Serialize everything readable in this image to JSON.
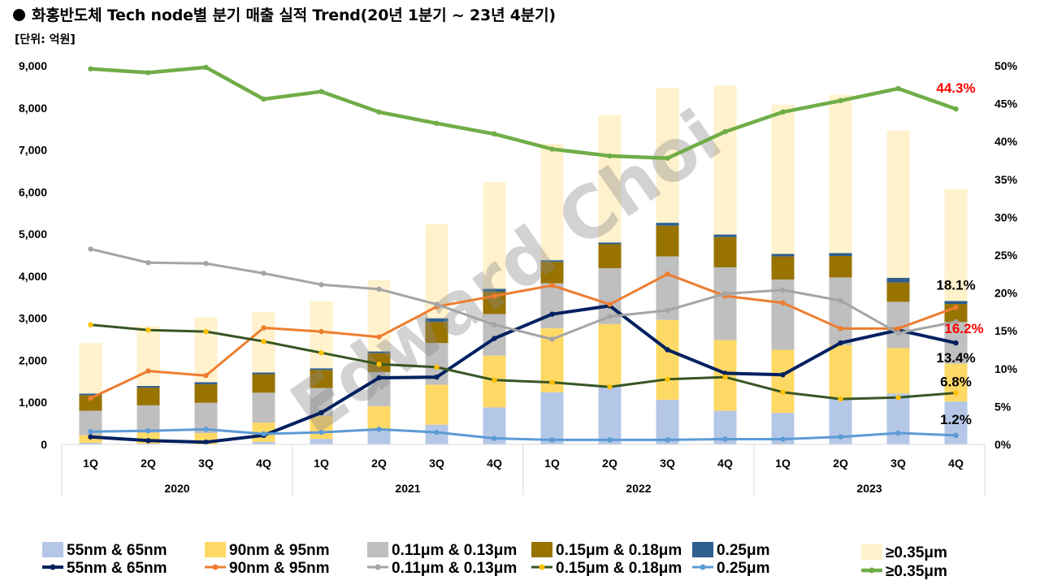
{
  "header": {
    "title": "화홍반도체 Tech node별 분기 매출 실적 Trend(20년 1분기 ~ 23년 4분기)",
    "unit": "[단위: 억원]"
  },
  "watermark": "Edward Choi",
  "colors": {
    "bar_55": "#b4c7e7",
    "bar_90": "#ffd966",
    "bar_011": "#bfbfbf",
    "bar_015": "#997300",
    "bar_025": "#2e5f8f",
    "bar_035": "#fff2cc",
    "line_55": "#002060",
    "line_90": "#ed7d31",
    "line_011": "#a5a5a5",
    "line_015": "#375623",
    "line_025": "#5b9bd5",
    "line_035": "#70ad47",
    "marker_015": "#ffc000",
    "label_red": "#ff0000"
  },
  "chart_data": {
    "type": "bar",
    "subtype": "stacked bar + line combo (dual axis)",
    "categories": [
      "1Q",
      "2Q",
      "3Q",
      "4Q",
      "1Q",
      "2Q",
      "3Q",
      "4Q",
      "1Q",
      "2Q",
      "3Q",
      "4Q",
      "1Q",
      "2Q",
      "3Q",
      "4Q"
    ],
    "years": [
      "2020",
      "2021",
      "2022",
      "2023"
    ],
    "ylim": [
      0,
      9000
    ],
    "yticks": [
      "0",
      "1,000",
      "2,000",
      "3,000",
      "4,000",
      "5,000",
      "6,000",
      "7,000",
      "8,000",
      "9,000"
    ],
    "y2lim": [
      0,
      50
    ],
    "y2ticks": [
      "0%",
      "5%",
      "10%",
      "15%",
      "20%",
      "25%",
      "30%",
      "35%",
      "40%",
      "45%",
      "50%"
    ],
    "bar_series": [
      {
        "name": "55nm & 65nm",
        "color_key": "bar_55",
        "values": [
          40,
          20,
          10,
          60,
          130,
          370,
          470,
          880,
          1240,
          1400,
          1060,
          800,
          750,
          1090,
          1210,
          1020
        ]
      },
      {
        "name": "90nm & 95nm",
        "color_key": "bar_90",
        "values": [
          180,
          260,
          260,
          460,
          550,
          540,
          950,
          1230,
          1520,
          1460,
          1900,
          1680,
          1500,
          1270,
          1080,
          900
        ]
      },
      {
        "name": "0.11μm & 0.13μm",
        "color_key": "bar_011",
        "values": [
          580,
          650,
          720,
          710,
          660,
          810,
          990,
          990,
          1070,
          1330,
          1510,
          1730,
          1670,
          1610,
          1100,
          990
        ]
      },
      {
        "name": "0.15μm & 0.18μm",
        "color_key": "bar_015",
        "values": [
          370,
          420,
          440,
          440,
          430,
          450,
          500,
          530,
          510,
          570,
          730,
          720,
          550,
          510,
          460,
          430
        ]
      },
      {
        "name": "0.25μm",
        "color_key": "bar_025",
        "values": [
          40,
          40,
          50,
          40,
          40,
          40,
          90,
          70,
          40,
          40,
          70,
          60,
          60,
          70,
          110,
          70
        ]
      },
      {
        "name": "≥0.35μm",
        "color_key": "bar_035",
        "values": [
          1200,
          1420,
          1540,
          1430,
          1590,
          1700,
          2240,
          2540,
          2770,
          3030,
          3200,
          3540,
          3540,
          3760,
          3500,
          2660
        ]
      }
    ],
    "line_series": [
      {
        "name": "55nm & 65nm",
        "color_key": "line_55",
        "width": 4,
        "values": [
          1.0,
          0.5,
          0.3,
          1.2,
          4.2,
          8.8,
          8.9,
          14.0,
          17.2,
          18.3,
          12.5,
          9.4,
          9.2,
          13.4,
          15.1,
          13.4
        ]
      },
      {
        "name": "90nm & 95nm",
        "color_key": "line_90",
        "width": 3,
        "values": [
          6.1,
          9.7,
          9.1,
          15.4,
          14.9,
          14.2,
          18.2,
          19.6,
          21.0,
          18.5,
          22.5,
          19.6,
          18.7,
          15.3,
          15.3,
          18.1
        ]
      },
      {
        "name": "0.11μm & 0.13μm",
        "color_key": "line_011",
        "width": 3,
        "values": [
          25.8,
          24.0,
          23.9,
          22.6,
          21.1,
          20.5,
          18.5,
          15.8,
          13.9,
          16.9,
          17.7,
          19.9,
          20.4,
          19.0,
          14.7,
          16.2
        ]
      },
      {
        "name": "0.15μm & 0.18μm",
        "color_key": "line_015",
        "width": 3,
        "marker_key": "marker_015",
        "values": [
          15.8,
          15.1,
          14.9,
          13.6,
          12.1,
          10.6,
          10.2,
          8.5,
          8.2,
          7.6,
          8.6,
          8.9,
          6.9,
          6.0,
          6.2,
          6.8
        ]
      },
      {
        "name": "0.25μm",
        "color_key": "line_025",
        "width": 3,
        "values": [
          1.7,
          1.8,
          2.0,
          1.4,
          1.6,
          2.0,
          1.6,
          0.8,
          0.6,
          0.6,
          0.6,
          0.7,
          0.7,
          1.0,
          1.5,
          1.2
        ]
      },
      {
        "name": "≥0.35μm",
        "color_key": "line_035",
        "width": 4.5,
        "values": [
          49.6,
          49.1,
          49.8,
          45.6,
          46.6,
          43.9,
          42.4,
          41.0,
          39.0,
          38.1,
          37.8,
          41.3,
          43.9,
          45.4,
          47.0,
          44.3
        ]
      }
    ],
    "end_labels": [
      {
        "text": "44.3%",
        "value": 44.3,
        "color_key": "label_red",
        "dy": -20,
        "dx": 0
      },
      {
        "text": "18.1%",
        "value": 18.1,
        "color_key": null,
        "dy": -22,
        "dx": 0
      },
      {
        "text": "16.2%",
        "value": 16.2,
        "color_key": "label_red",
        "dy": 14,
        "dx": 10
      },
      {
        "text": "13.4%",
        "value": 13.4,
        "color_key": null,
        "dy": 24,
        "dx": 0
      },
      {
        "text": "6.8%",
        "value": 6.8,
        "color_key": null,
        "dy": -8,
        "dx": 0
      },
      {
        "text": "1.2%",
        "value": 1.2,
        "color_key": null,
        "dy": -14,
        "dx": 0
      }
    ],
    "legend_position": "bottom"
  }
}
